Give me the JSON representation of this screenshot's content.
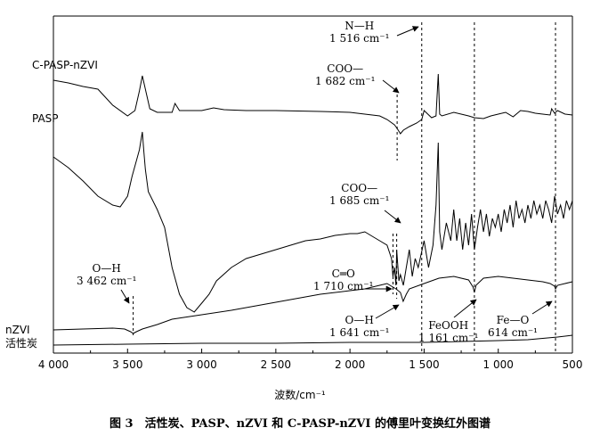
{
  "chart_data": {
    "type": "line",
    "xlabel": "波数/cm⁻¹",
    "xlim": [
      4000,
      500
    ],
    "x_ticks": [
      "4 000",
      "3 500",
      "3 000",
      "2 500",
      "2 000",
      "1 500",
      "1 000",
      "500"
    ],
    "caption": "图 3　活性炭、PASP、nZVI 和 C-PASP-nZVI 的傅里叶变换红外图谱",
    "series": [
      {
        "name": "C-PASP-nZVI",
        "x": [
          4000,
          3900,
          3800,
          3700,
          3600,
          3500,
          3450,
          3420,
          3400,
          3380,
          3350,
          3300,
          3200,
          3180,
          3150,
          3000,
          2920,
          2850,
          2700,
          2500,
          2200,
          2000,
          1900,
          1800,
          1750,
          1700,
          1682,
          1660,
          1640,
          1600,
          1550,
          1516,
          1500,
          1450,
          1420,
          1405,
          1395,
          1380,
          1300,
          1200,
          1161,
          1100,
          1050,
          1000,
          950,
          900,
          850,
          800,
          750,
          700,
          650,
          640,
          620,
          600,
          550,
          500
        ],
        "y": [
          10,
          13,
          17,
          20,
          38,
          50,
          44,
          22,
          5,
          20,
          42,
          46,
          46,
          36,
          44,
          44,
          41,
          43,
          44,
          44,
          45,
          46,
          48,
          50,
          54,
          60,
          64,
          70,
          66,
          62,
          58,
          54,
          44,
          52,
          50,
          3,
          48,
          50,
          46,
          50,
          52,
          53,
          50,
          48,
          46,
          51,
          44,
          45,
          47,
          48,
          49,
          42,
          47,
          44,
          48,
          49
        ]
      },
      {
        "name": "PASP",
        "x": [
          4000,
          3900,
          3800,
          3700,
          3600,
          3550,
          3500,
          3470,
          3440,
          3420,
          3400,
          3390,
          3380,
          3360,
          3300,
          3250,
          3200,
          3150,
          3100,
          3050,
          3000,
          2950,
          2900,
          2800,
          2700,
          2600,
          2500,
          2400,
          2300,
          2200,
          2100,
          2000,
          1950,
          1900,
          1850,
          1800,
          1750,
          1720,
          1710,
          1700,
          1690,
          1685,
          1670,
          1660,
          1640,
          1620,
          1600,
          1580,
          1560,
          1540,
          1520,
          1500,
          1470,
          1440,
          1420,
          1405,
          1395,
          1380,
          1350,
          1320,
          1300,
          1280,
          1260,
          1240,
          1220,
          1200,
          1180,
          1161,
          1140,
          1120,
          1100,
          1080,
          1060,
          1040,
          1020,
          1000,
          980,
          960,
          940,
          920,
          900,
          880,
          860,
          840,
          820,
          800,
          780,
          760,
          740,
          720,
          700,
          680,
          660,
          640,
          620,
          600,
          580,
          560,
          540,
          520,
          500
        ],
        "y": [
          36,
          48,
          63,
          80,
          90,
          92,
          80,
          58,
          40,
          28,
          8,
          30,
          50,
          75,
          95,
          115,
          160,
          190,
          205,
          210,
          200,
          190,
          175,
          160,
          150,
          145,
          140,
          135,
          130,
          128,
          124,
          122,
          122,
          120,
          125,
          130,
          135,
          150,
          170,
          160,
          180,
          140,
          175,
          168,
          180,
          160,
          140,
          170,
          150,
          160,
          145,
          130,
          160,
          135,
          90,
          20,
          120,
          140,
          110,
          130,
          95,
          130,
          105,
          140,
          110,
          135,
          100,
          140,
          115,
          95,
          120,
          100,
          125,
          105,
          115,
          100,
          120,
          95,
          110,
          90,
          115,
          85,
          105,
          95,
          110,
          90,
          105,
          85,
          100,
          90,
          105,
          85,
          95,
          110,
          80,
          100,
          90,
          105,
          85,
          95,
          85
        ]
      },
      {
        "name": "nZVI",
        "x": [
          4000,
          3800,
          3600,
          3520,
          3480,
          3462,
          3440,
          3400,
          3300,
          3200,
          3000,
          2800,
          2600,
          2400,
          2200,
          2000,
          1900,
          1800,
          1750,
          1710,
          1690,
          1660,
          1641,
          1620,
          1600,
          1500,
          1400,
          1300,
          1200,
          1170,
          1161,
          1150,
          1100,
          1000,
          900,
          800,
          700,
          650,
          620,
          614,
          600,
          550,
          500
        ],
        "y": [
          8,
          9,
          10,
          9,
          6,
          4,
          6,
          9,
          14,
          20,
          25,
          30,
          36,
          42,
          48,
          52,
          54,
          58,
          60,
          56,
          54,
          50,
          40,
          48,
          54,
          60,
          66,
          68,
          64,
          56,
          50,
          58,
          66,
          68,
          66,
          64,
          62,
          60,
          57,
          54,
          58,
          60,
          62
        ]
      },
      {
        "name": "活性炭",
        "x": [
          4000,
          3500,
          3000,
          2500,
          2000,
          1500,
          1000,
          800,
          600,
          500
        ],
        "y": [
          3,
          4,
          5,
          5,
          6,
          6,
          8,
          9,
          12,
          14
        ]
      }
    ],
    "annotations": [
      {
        "text": "N—H",
        "sub": "1 516 cm⁻¹",
        "x": 1516
      },
      {
        "text": "COO—",
        "sub": "1 682 cm⁻¹",
        "x": 1682
      },
      {
        "text": "COO—",
        "sub": "1 685 cm⁻¹",
        "x": 1685
      },
      {
        "text": "C═O",
        "sub": "1 710 cm⁻¹",
        "x": 1710
      },
      {
        "text": "O—H",
        "sub": "3 462 cm⁻¹",
        "x": 3462
      },
      {
        "text": "O—H",
        "sub": "1 641 cm⁻¹",
        "x": 1641
      },
      {
        "text": "FeOOH",
        "sub": "1 161 cm⁻¹",
        "x": 1161
      },
      {
        "text": "Fe—O",
        "sub": "614 cm⁻¹",
        "x": 614
      }
    ],
    "grid": false,
    "legend": "inline labels at left"
  }
}
